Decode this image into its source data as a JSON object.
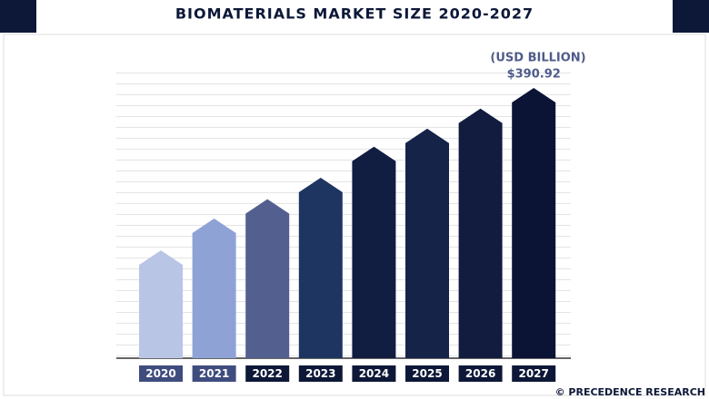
{
  "chart_data": {
    "type": "arrow-bar",
    "title": "BIOMATERIALS MARKET SIZE 2020-2027",
    "annotation": "(USD BILLION)",
    "footer": "© PRECEDENCE RESEARCH",
    "categories": [
      "2020",
      "2021",
      "2022",
      "2023",
      "2024",
      "2025",
      "2026",
      "2027"
    ],
    "values": [
      156,
      202,
      230,
      261,
      306,
      332,
      361,
      390.92
    ],
    "value_labels": [
      null,
      null,
      null,
      null,
      null,
      null,
      null,
      "$390.92"
    ],
    "colors": [
      "#b9c5e5",
      "#8ea2d5",
      "#535f8f",
      "#1f3561",
      "#121d42",
      "#152349",
      "#111c3e",
      "#0b1434"
    ]
  }
}
